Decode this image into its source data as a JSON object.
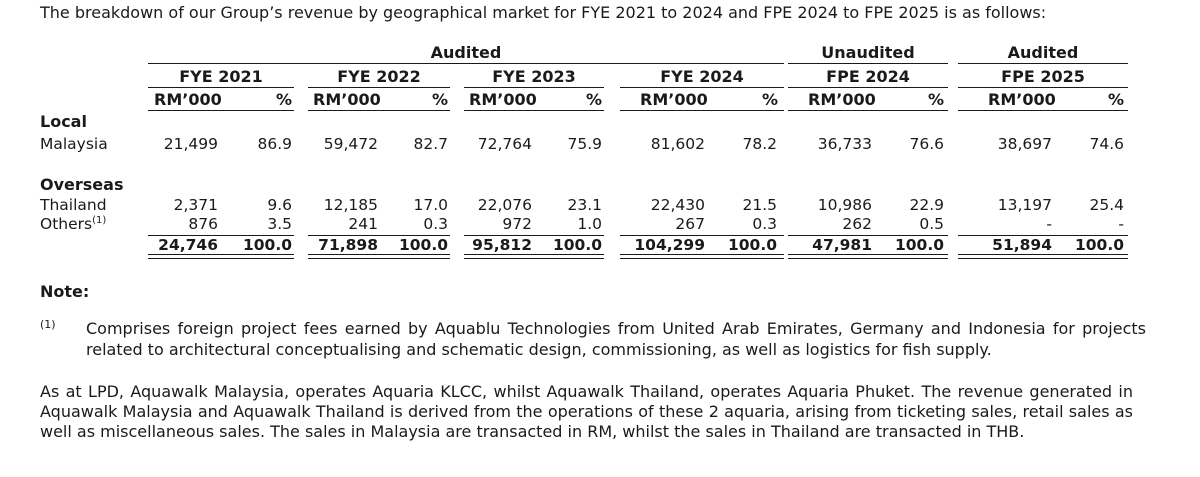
{
  "intro": "The breakdown of our Group’s revenue by geographical market for FYE 2021 to 2024 and FPE 2024 to FPE 2025 is as follows:",
  "table": {
    "group_headers": [
      "Audited",
      "Unaudited",
      "Audited"
    ],
    "periods": [
      "FYE 2021",
      "FYE 2022",
      "FYE 2023",
      "FYE 2024",
      "FPE 2024",
      "FPE 2025"
    ],
    "unit_rm": "RM’000",
    "unit_pct": "%",
    "sections": [
      {
        "title": "Local",
        "rows": [
          {
            "label": "Malaysia",
            "values": [
              "21,499",
              "86.9",
              "59,472",
              "82.7",
              "72,764",
              "75.9",
              "81,602",
              "78.2",
              "36,733",
              "76.6",
              "38,697",
              "74.6"
            ]
          }
        ]
      },
      {
        "title": "Overseas",
        "rows": [
          {
            "label": "Thailand",
            "values": [
              "2,371",
              "9.6",
              "12,185",
              "17.0",
              "22,076",
              "23.1",
              "22,430",
              "21.5",
              "10,986",
              "22.9",
              "13,197",
              "25.4"
            ]
          },
          {
            "label": "Others",
            "footnote": "(1)",
            "values": [
              "876",
              "3.5",
              "241",
              "0.3",
              "972",
              "1.0",
              "267",
              "0.3",
              "262",
              "0.5",
              "-",
              "-"
            ]
          }
        ]
      }
    ],
    "totals": [
      "24,746",
      "100.0",
      "71,898",
      "100.0",
      "95,812",
      "100.0",
      "104,299",
      "100.0",
      "47,981",
      "100.0",
      "51,894",
      "100.0"
    ]
  },
  "note": {
    "title": "Note:",
    "footnote_mark": "(1)",
    "footnote_text": "Comprises foreign project fees earned by Aquablu Technologies from United Arab Emirates, Germany and Indonesia for projects related to architectural conceptualising and schematic design, commissioning, as well as logistics for fish supply."
  },
  "paragraph": "As at LPD, Aquawalk Malaysia, operates Aquaria KLCC, whilst Aquawalk Thailand, operates Aquaria Phuket. The revenue generated in Aquawalk Malaysia and Aquawalk Thailand is derived from the operations of these 2 aquaria, arising from ticketing sales, retail sales as well as miscellaneous sales. The sales in Malaysia are transacted in RM, whilst the sales in Thailand are transacted in THB."
}
